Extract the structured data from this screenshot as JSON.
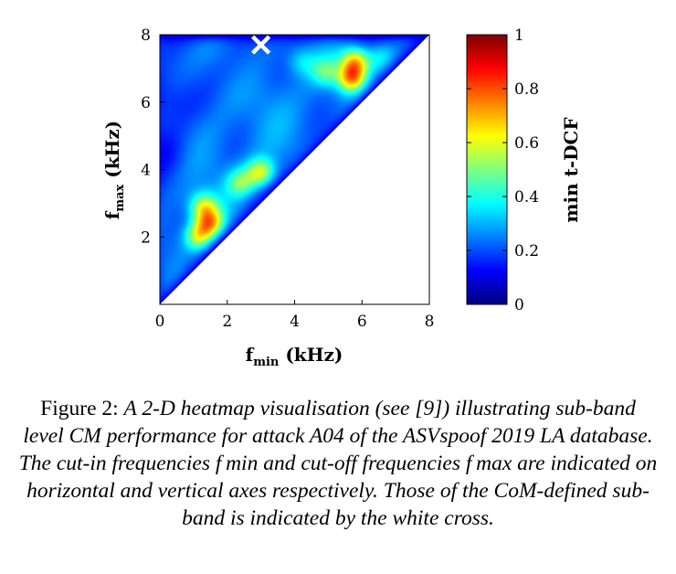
{
  "chart_data": {
    "type": "heatmap",
    "title": "",
    "x_axis": {
      "label_main": "f",
      "label_sub": "min",
      "label_unit": "(kHz)",
      "range": [
        0,
        8
      ],
      "ticks": [
        "0",
        "2",
        "4",
        "6",
        "8"
      ]
    },
    "y_axis": {
      "label_main": "f",
      "label_sub": "max",
      "label_unit": "(kHz)",
      "range": [
        0,
        8
      ],
      "ticks": [
        "2",
        "4",
        "6",
        "8"
      ]
    },
    "colorbar": {
      "label": "min t-DCF",
      "range": [
        0,
        1
      ],
      "ticks": [
        "0",
        "0.2",
        "0.4",
        "0.6",
        "0.8",
        "1"
      ]
    },
    "valid_region": "f_max > f_min",
    "base_level": 0.26,
    "hotspots": [
      {
        "fmin": 1.5,
        "fmax": 2.4,
        "value": 0.68
      },
      {
        "fmin": 1.3,
        "fmax": 2.9,
        "value": 0.58
      },
      {
        "fmin": 1.15,
        "fmax": 2.0,
        "value": 0.6
      },
      {
        "fmin": 3.0,
        "fmax": 3.9,
        "value": 0.63
      },
      {
        "fmin": 2.4,
        "fmax": 3.6,
        "value": 0.5
      },
      {
        "fmin": 5.7,
        "fmax": 6.7,
        "value": 0.72
      },
      {
        "fmin": 5.8,
        "fmax": 7.2,
        "value": 0.65
      },
      {
        "fmin": 4.9,
        "fmax": 6.9,
        "value": 0.46
      },
      {
        "fmin": 4.2,
        "fmax": 7.2,
        "value": 0.38
      },
      {
        "fmin": 6.6,
        "fmax": 7.3,
        "value": 0.4
      }
    ],
    "lowspots": [
      {
        "fmin": 0.2,
        "fmax": 6.0,
        "value": 0.14
      },
      {
        "fmin": 0.2,
        "fmax": 4.5,
        "value": 0.16
      },
      {
        "fmin": 2.5,
        "fmax": 7.1,
        "value": 0.2
      }
    ],
    "com_marker": {
      "fmin": 3.0,
      "fmax": 7.7,
      "color": "#ffffff",
      "symbol": "cross"
    }
  },
  "caption": {
    "prefix": "Figure 2: ",
    "text": "A 2-D heatmap visualisation (see [9]) illustrating sub-band level CM performance for attack A04 of the ASVspoof 2019 LA database. The cut-in frequencies f min and cut-off frequencies f max are indicated on horizontal and vertical axes respectively. Those of the CoM-defined sub-band is indicated by the white cross."
  }
}
